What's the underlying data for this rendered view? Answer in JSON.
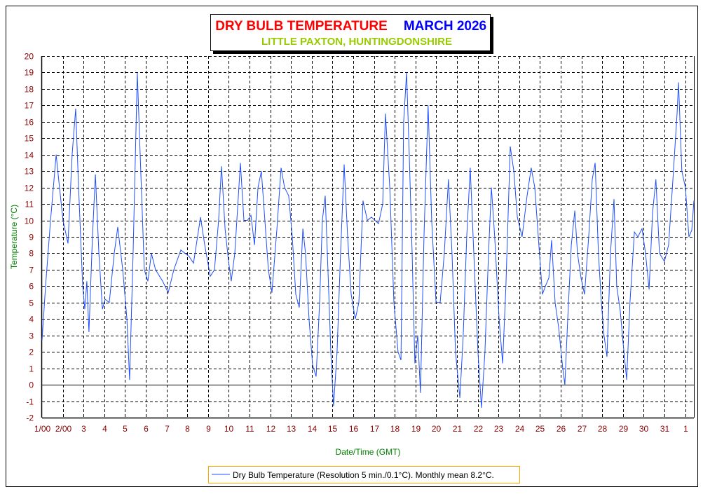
{
  "chart_data": {
    "type": "line",
    "title": "DRY BULB TEMPERATURE",
    "title_period": "MARCH 2026",
    "subtitle": "LITTLE PAXTON, HUNTINGDONSHIRE",
    "xlabel": "Date/Time (GMT)",
    "ylabel": "Temperature (°C)",
    "ylim": [
      -2,
      20
    ],
    "xlim": [
      1,
      32.42
    ],
    "grid": true,
    "legend_placement": "bottom-center",
    "y_ticks": [
      "-2",
      "-1",
      "0",
      "1",
      "2",
      "3",
      "4",
      "5",
      "6",
      "7",
      "8",
      "9",
      "10",
      "11",
      "12",
      "13",
      "14",
      "15",
      "16",
      "17",
      "18",
      "19",
      "20"
    ],
    "x_ticks": [
      {
        "day": 1,
        "label": "1/00"
      },
      {
        "day": 2,
        "label": "2/00"
      },
      {
        "day": 3,
        "label": "3"
      },
      {
        "day": 4,
        "label": "4"
      },
      {
        "day": 5,
        "label": "5"
      },
      {
        "day": 6,
        "label": "6"
      },
      {
        "day": 7,
        "label": "7"
      },
      {
        "day": 8,
        "label": "8"
      },
      {
        "day": 9,
        "label": "9"
      },
      {
        "day": 10,
        "label": "10"
      },
      {
        "day": 11,
        "label": "11"
      },
      {
        "day": 12,
        "label": "12"
      },
      {
        "day": 13,
        "label": "13"
      },
      {
        "day": 14,
        "label": "14"
      },
      {
        "day": 15,
        "label": "15"
      },
      {
        "day": 16,
        "label": "16"
      },
      {
        "day": 17,
        "label": "17"
      },
      {
        "day": 18,
        "label": "18"
      },
      {
        "day": 19,
        "label": "19"
      },
      {
        "day": 20,
        "label": "20"
      },
      {
        "day": 21,
        "label": "21"
      },
      {
        "day": 22,
        "label": "22"
      },
      {
        "day": 23,
        "label": "23"
      },
      {
        "day": 24,
        "label": "24"
      },
      {
        "day": 25,
        "label": "25"
      },
      {
        "day": 26,
        "label": "26"
      },
      {
        "day": 27,
        "label": "27"
      },
      {
        "day": 28,
        "label": "28"
      },
      {
        "day": 29,
        "label": "29"
      },
      {
        "day": 30,
        "label": "30"
      },
      {
        "day": 31,
        "label": "31"
      },
      {
        "day": 32,
        "label": "1"
      }
    ],
    "series": [
      {
        "name": "Dry Bulb Temperature (Resolution 5 min./0.1°C). Monthly mean 8.2°C.",
        "color": "#1f4fff",
        "x": [
          1.0,
          1.17,
          1.41,
          1.68,
          1.84,
          2.01,
          2.25,
          2.45,
          2.62,
          2.76,
          2.96,
          3.06,
          3.16,
          3.26,
          3.43,
          3.57,
          3.74,
          3.91,
          4.04,
          4.24,
          4.48,
          4.65,
          4.89,
          5.09,
          5.22,
          5.39,
          5.59,
          5.73,
          5.93,
          6.1,
          6.27,
          6.47,
          6.81,
          7.08,
          7.35,
          7.69,
          8.09,
          8.3,
          8.64,
          8.84,
          9.11,
          9.31,
          9.51,
          9.65,
          9.82,
          9.99,
          10.12,
          10.29,
          10.56,
          10.73,
          10.9,
          11.07,
          11.24,
          11.41,
          11.57,
          11.74,
          11.91,
          12.08,
          12.32,
          12.52,
          12.69,
          12.89,
          13.06,
          13.23,
          13.4,
          13.57,
          13.7,
          13.87,
          14.04,
          14.21,
          14.38,
          14.51,
          14.65,
          14.78,
          14.92,
          15.05,
          15.22,
          15.39,
          15.56,
          15.73,
          15.9,
          16.1,
          16.27,
          16.47,
          16.68,
          16.88,
          17.22,
          17.42,
          17.55,
          17.76,
          17.96,
          18.16,
          18.3,
          18.43,
          18.57,
          18.7,
          18.84,
          18.97,
          19.11,
          19.24,
          19.41,
          19.61,
          19.78,
          19.99,
          20.19,
          20.39,
          20.59,
          20.76,
          20.93,
          21.14,
          21.3,
          21.47,
          21.64,
          21.81,
          22.01,
          22.18,
          22.35,
          22.52,
          22.66,
          22.82,
          23.03,
          23.2,
          23.36,
          23.57,
          23.74,
          23.91,
          24.14,
          24.38,
          24.58,
          24.75,
          24.92,
          25.12,
          25.26,
          25.43,
          25.56,
          25.73,
          25.9,
          26.1,
          26.2,
          26.34,
          26.51,
          26.68,
          26.81,
          26.98,
          27.15,
          27.35,
          27.52,
          27.66,
          27.82,
          27.96,
          28.09,
          28.23,
          28.4,
          28.57,
          28.7,
          28.87,
          29.01,
          29.18,
          29.34,
          29.55,
          29.72,
          29.92,
          30.09,
          30.26,
          30.43,
          30.59,
          30.76,
          31.0,
          31.2,
          31.41,
          31.61,
          31.68,
          31.84,
          32.01,
          32.18,
          32.32,
          32.42
        ],
        "y": [
          2.7,
          6,
          10,
          14,
          12,
          10,
          8.6,
          14,
          16.8,
          12,
          6,
          4.6,
          6.3,
          3.2,
          9,
          12.8,
          8,
          4.6,
          5.2,
          5,
          8,
          9.6,
          7,
          4,
          0.3,
          8,
          19,
          14,
          7,
          6.3,
          8,
          7,
          6.3,
          5.6,
          7,
          8.2,
          7.8,
          7.4,
          10.2,
          8.5,
          6.6,
          7,
          10,
          13.3,
          9.5,
          7.5,
          6.3,
          8,
          13.5,
          10,
          10,
          10.3,
          8.5,
          12,
          13,
          10,
          7,
          5.6,
          9.5,
          13.2,
          12,
          11.5,
          9,
          5.5,
          4.7,
          9.5,
          8,
          4,
          1.2,
          0.5,
          5,
          10,
          11.5,
          7,
          2,
          -1.3,
          2,
          8,
          13.4,
          9,
          5.5,
          4,
          5,
          11.2,
          10,
          10.2,
          9.8,
          11,
          16.5,
          12,
          5,
          2,
          1.5,
          16,
          19,
          14,
          8,
          1.3,
          3,
          -0.5,
          9,
          17,
          10,
          5,
          5,
          8,
          12.5,
          8,
          2,
          -0.8,
          3,
          9,
          13.2,
          8,
          2,
          -1.4,
          2,
          8,
          12,
          9,
          4,
          1.3,
          6,
          14.5,
          13,
          10.2,
          9,
          11.5,
          13.2,
          12,
          9,
          5.5,
          6,
          6.5,
          8.8,
          5,
          3.5,
          1,
          0,
          4,
          8.5,
          10.6,
          8,
          6.5,
          5.5,
          9,
          12.5,
          13.5,
          8,
          5,
          3,
          1.7,
          8,
          11.3,
          6,
          4.5,
          2.5,
          0.3,
          5,
          9.3,
          9,
          9.5,
          8,
          5.8,
          10.5,
          12.5,
          8,
          7.5,
          8.5,
          12.5,
          16.5,
          18.4,
          13,
          12,
          9,
          9.4,
          11.2
        ]
      }
    ]
  }
}
